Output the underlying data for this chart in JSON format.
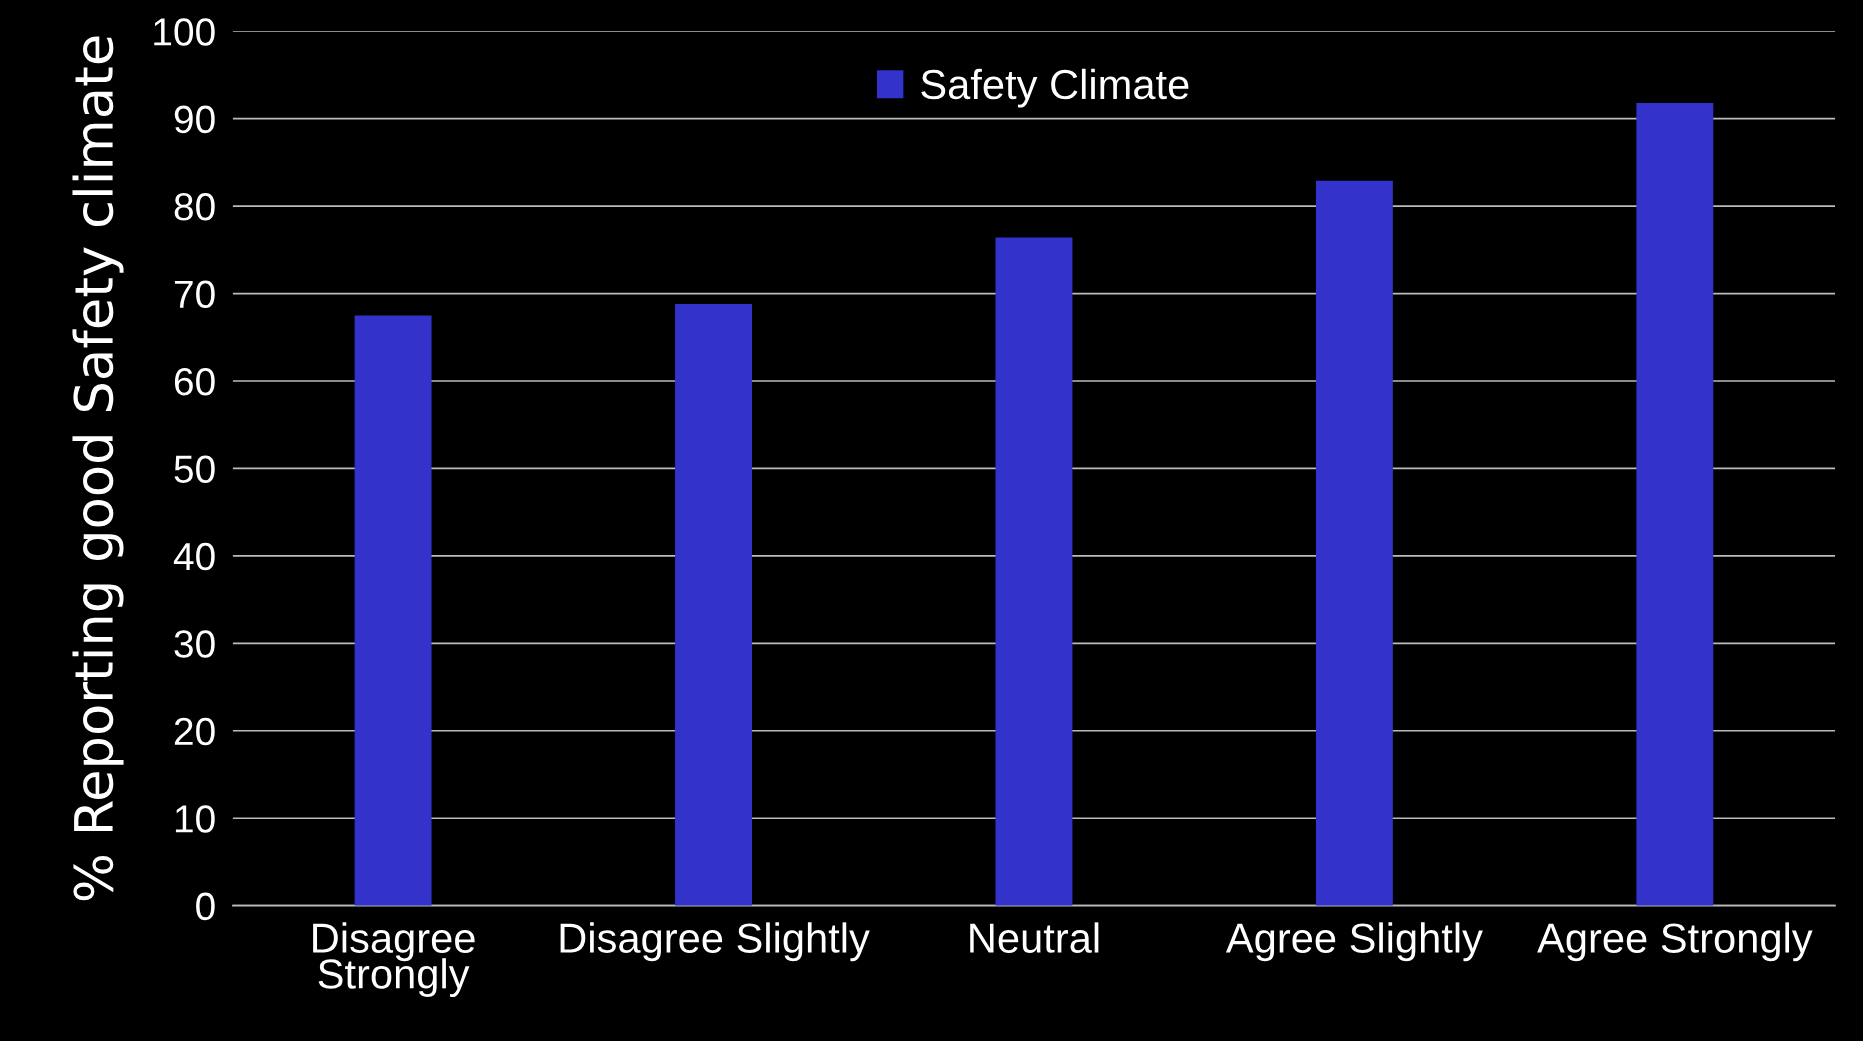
{
  "chart_data": {
    "type": "bar",
    "ylabel": "% Reporting good Safety climate",
    "categories": [
      "Disagree\nStrongly",
      "Disagree Slightly",
      "Neutral",
      "Agree Slightly",
      "Agree Strongly"
    ],
    "series": [
      {
        "name": "Safety Climate",
        "color": "#3333cc",
        "values": [
          67.5,
          68.8,
          76.4,
          82.9,
          91.8
        ]
      }
    ],
    "ylim": [
      0,
      100
    ],
    "yticks": [
      0,
      10,
      20,
      30,
      40,
      50,
      60,
      70,
      80,
      90,
      100
    ],
    "grid": "y",
    "legend": "top"
  }
}
